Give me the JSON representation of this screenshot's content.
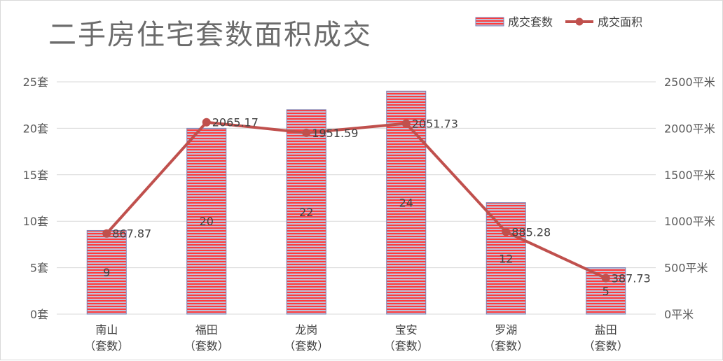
{
  "colors": {
    "bar_fill": "#ff3b3b",
    "bar_stripe": "#c0c0d8",
    "bar_border": "#7f7fb0",
    "line": "#c0504d",
    "grid": "#d9d9d9"
  },
  "chart_data": {
    "type": "bar",
    "title": "二手房住宅套数面积成交",
    "categories": [
      "南山\n（套数）",
      "福田\n（套数）",
      "龙岗\n（套数）",
      "宝安\n（套数）",
      "罗湖\n（套数）",
      "盐田\n（套数）"
    ],
    "series": [
      {
        "name": "成交套数",
        "type": "bar",
        "axis": "left",
        "values": [
          9,
          20,
          22,
          24,
          12,
          5
        ],
        "labels": [
          "9",
          "20",
          "22",
          "24",
          "12",
          "5"
        ]
      },
      {
        "name": "成交面积",
        "type": "line",
        "axis": "right",
        "values": [
          867.87,
          2065.17,
          1951.59,
          2051.73,
          885.28,
          387.73
        ],
        "labels": [
          "867.87",
          "2065.17",
          "1951.59",
          "2051.73",
          "885.28",
          "387.73"
        ]
      }
    ],
    "y_left": {
      "ylim": [
        0,
        25
      ],
      "ticks": [
        "0套",
        "5套",
        "10套",
        "15套",
        "20套",
        "25套"
      ],
      "tick_values": [
        0,
        5,
        10,
        15,
        20,
        25
      ]
    },
    "y_right": {
      "ylim": [
        0,
        2500
      ],
      "ticks": [
        "0平米",
        "500平米",
        "1000平米",
        "1500平米",
        "2000平米",
        "2500平米"
      ],
      "tick_values": [
        0,
        500,
        1000,
        1500,
        2000,
        2500
      ]
    },
    "grid": true,
    "legend": "top-right"
  }
}
